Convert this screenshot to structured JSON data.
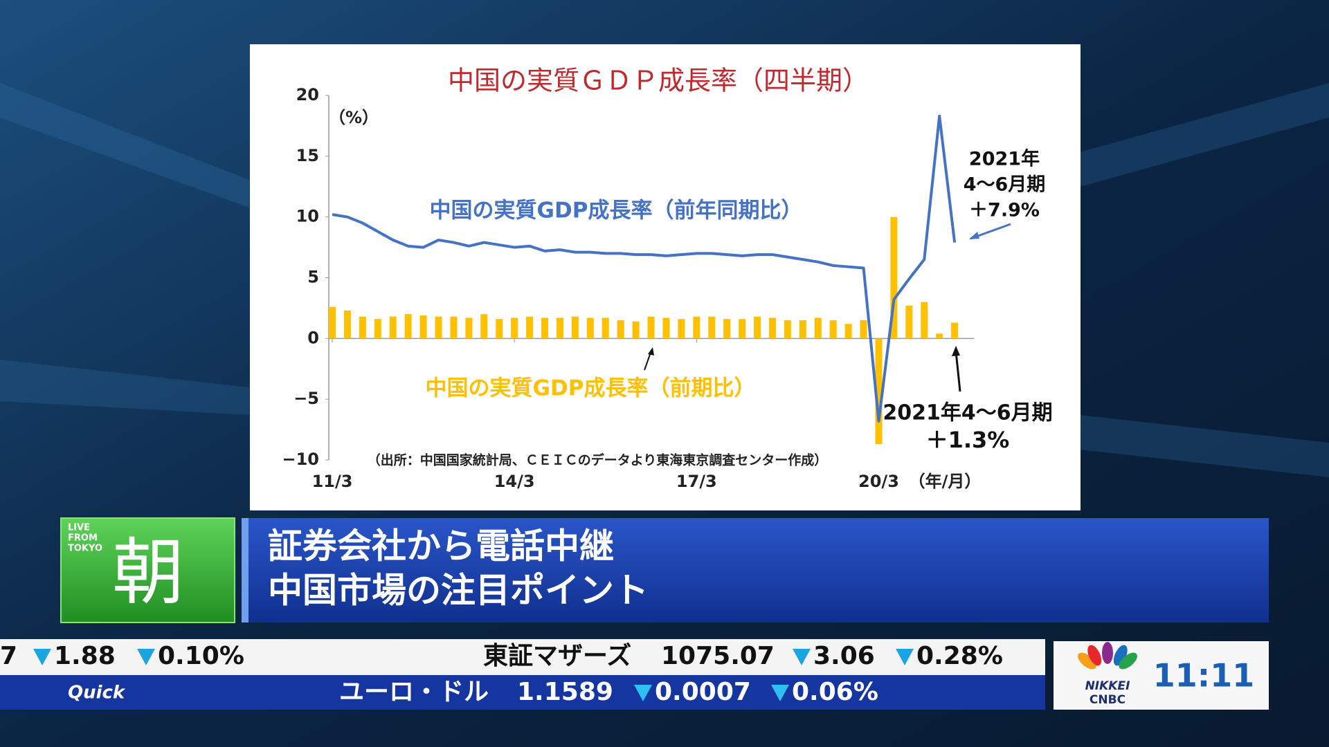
{
  "chart_data": {
    "type": "combo",
    "title": "中国の実質ＧＤＰ成長率（四半期）",
    "y_unit_label": "（%）",
    "x_unit_label": "（年/月）",
    "source": "（出所：中国国家統計局、ＣＥＩＣのデータより東海東京調査センター作成）",
    "categories": [
      "11/3",
      null,
      null,
      null,
      null,
      null,
      null,
      null,
      null,
      null,
      null,
      null,
      "14/3",
      null,
      null,
      null,
      null,
      null,
      null,
      null,
      null,
      null,
      null,
      null,
      "17/3",
      null,
      null,
      null,
      null,
      null,
      null,
      null,
      null,
      null,
      null,
      null,
      "20/3",
      null,
      null,
      null,
      null,
      null
    ],
    "series": [
      {
        "name": "中国の実質GDP成長率（前年同期比）",
        "kind": "line",
        "color": "#4472c4",
        "values": [
          10.2,
          10.0,
          9.5,
          8.8,
          8.1,
          7.6,
          7.5,
          8.1,
          7.9,
          7.6,
          7.9,
          7.7,
          7.5,
          7.6,
          7.2,
          7.3,
          7.1,
          7.1,
          7.0,
          7.0,
          6.9,
          6.9,
          6.8,
          6.9,
          7.0,
          7.0,
          6.9,
          6.8,
          6.9,
          6.9,
          6.7,
          6.5,
          6.3,
          6.0,
          5.9,
          5.8,
          -6.8,
          3.2,
          4.9,
          6.5,
          18.3,
          7.9
        ]
      },
      {
        "name": "中国の実質GDP成長率（前期比）",
        "kind": "bar",
        "color": "#ffc000",
        "values": [
          2.6,
          2.3,
          1.8,
          1.6,
          1.8,
          2.0,
          1.9,
          1.8,
          1.8,
          1.7,
          2.0,
          1.6,
          1.7,
          1.8,
          1.7,
          1.7,
          1.8,
          1.7,
          1.7,
          1.5,
          1.4,
          1.8,
          1.7,
          1.6,
          1.8,
          1.8,
          1.6,
          1.6,
          1.8,
          1.7,
          1.5,
          1.5,
          1.7,
          1.5,
          1.2,
          1.5,
          -8.7,
          10.0,
          2.7,
          3.0,
          0.4,
          1.3
        ]
      }
    ],
    "annotations": [
      [
        "2021年",
        "4～6月期",
        "＋7.9%"
      ],
      [
        "2021年4～6月期",
        "＋1.3%"
      ]
    ],
    "ylim": [
      -10,
      20
    ],
    "yticks": [
      {
        "value": -10,
        "label": "−10"
      },
      {
        "value": -5,
        "label": "−5"
      },
      0,
      5,
      10,
      15,
      20
    ],
    "grid": false
  },
  "program": {
    "live": [
      "LIVE",
      "FROM",
      "TOKYO"
    ],
    "name": "朝"
  },
  "headline": [
    "証券会社から電話中継",
    "中国市場の注目ポイント"
  ],
  "ticker": {
    "top": [
      "7",
      "1.88",
      "0.10%",
      "東証マザーズ",
      "1075.07",
      "3.06",
      "0.28%"
    ],
    "source": "Quick",
    "bottom": [
      "ユーロ・ドル",
      "1.1589",
      "0.0007",
      "0.06%"
    ]
  },
  "logo": [
    "NIKKEI",
    "CNBC"
  ],
  "clock": "11:11"
}
